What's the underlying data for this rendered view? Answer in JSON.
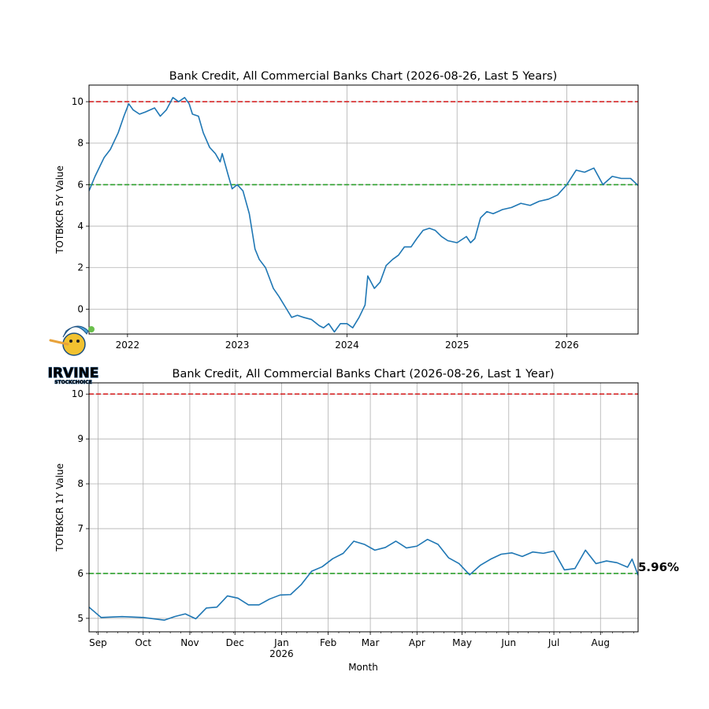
{
  "chart_data": [
    {
      "type": "line",
      "title": "Bank Credit, All Commercial Banks Chart (2026-08-26, Last 5 Years)",
      "xlabel": "",
      "ylabel": "TOTBKCR 5Y Value",
      "xlim": [
        "2021-08-26",
        "2026-08-26"
      ],
      "ylim": [
        -1.2,
        10.8
      ],
      "y_ticks": [
        "0",
        "2",
        "4",
        "6",
        "8",
        "10"
      ],
      "x_ticks": [
        "2022",
        "2023",
        "2024",
        "2025",
        "2026"
      ],
      "grid": true,
      "reference_lines": [
        {
          "value": 10,
          "color": "#d62728",
          "style": "dashed"
        },
        {
          "value": 6,
          "color": "#2ca02c",
          "style": "dashed"
        }
      ],
      "series": [
        {
          "color": "#1f77b4",
          "points": [
            [
              "2021-08-26",
              5.7
            ],
            [
              "2021-09-15",
              6.4
            ],
            [
              "2021-10-15",
              7.3
            ],
            [
              "2021-11-05",
              7.7
            ],
            [
              "2021-12-01",
              8.5
            ],
            [
              "2021-12-20",
              9.3
            ],
            [
              "2022-01-05",
              9.9
            ],
            [
              "2022-01-20",
              9.6
            ],
            [
              "2022-02-10",
              9.4
            ],
            [
              "2022-03-01",
              9.5
            ],
            [
              "2022-04-01",
              9.7
            ],
            [
              "2022-04-20",
              9.3
            ],
            [
              "2022-05-10",
              9.6
            ],
            [
              "2022-06-01",
              10.2
            ],
            [
              "2022-06-20",
              10.0
            ],
            [
              "2022-07-10",
              10.2
            ],
            [
              "2022-07-25",
              9.9
            ],
            [
              "2022-08-05",
              9.4
            ],
            [
              "2022-08-25",
              9.3
            ],
            [
              "2022-09-10",
              8.5
            ],
            [
              "2022-10-01",
              7.8
            ],
            [
              "2022-10-20",
              7.5
            ],
            [
              "2022-11-05",
              7.1
            ],
            [
              "2022-11-12",
              7.5
            ],
            [
              "2022-12-01",
              6.5
            ],
            [
              "2022-12-15",
              5.8
            ],
            [
              "2023-01-01",
              6.0
            ],
            [
              "2023-01-20",
              5.7
            ],
            [
              "2023-02-10",
              4.6
            ],
            [
              "2023-03-01",
              2.9
            ],
            [
              "2023-03-15",
              2.4
            ],
            [
              "2023-04-05",
              2.0
            ],
            [
              "2023-05-01",
              1.0
            ],
            [
              "2023-05-20",
              0.6
            ],
            [
              "2023-06-10",
              0.1
            ],
            [
              "2023-07-01",
              -0.4
            ],
            [
              "2023-07-20",
              -0.3
            ],
            [
              "2023-08-10",
              -0.4
            ],
            [
              "2023-09-05",
              -0.5
            ],
            [
              "2023-10-01",
              -0.8
            ],
            [
              "2023-10-15",
              -0.9
            ],
            [
              "2023-11-01",
              -0.7
            ],
            [
              "2023-11-20",
              -1.1
            ],
            [
              "2023-12-10",
              -0.7
            ],
            [
              "2024-01-01",
              -0.7
            ],
            [
              "2024-01-20",
              -0.9
            ],
            [
              "2024-02-10",
              -0.4
            ],
            [
              "2024-03-01",
              0.2
            ],
            [
              "2024-03-10",
              1.6
            ],
            [
              "2024-04-01",
              1.0
            ],
            [
              "2024-04-20",
              1.3
            ],
            [
              "2024-05-10",
              2.1
            ],
            [
              "2024-06-01",
              2.4
            ],
            [
              "2024-06-20",
              2.6
            ],
            [
              "2024-07-10",
              3.0
            ],
            [
              "2024-08-01",
              3.0
            ],
            [
              "2024-08-20",
              3.4
            ],
            [
              "2024-09-10",
              3.8
            ],
            [
              "2024-10-01",
              3.9
            ],
            [
              "2024-10-20",
              3.8
            ],
            [
              "2024-11-10",
              3.5
            ],
            [
              "2024-12-01",
              3.3
            ],
            [
              "2025-01-01",
              3.2
            ],
            [
              "2025-02-01",
              3.5
            ],
            [
              "2025-02-15",
              3.2
            ],
            [
              "2025-03-01",
              3.4
            ],
            [
              "2025-03-20",
              4.4
            ],
            [
              "2025-04-10",
              4.7
            ],
            [
              "2025-05-01",
              4.6
            ],
            [
              "2025-06-01",
              4.8
            ],
            [
              "2025-07-01",
              4.9
            ],
            [
              "2025-08-01",
              5.1
            ],
            [
              "2025-09-01",
              5.0
            ],
            [
              "2025-10-01",
              5.2
            ],
            [
              "2025-11-01",
              5.3
            ],
            [
              "2025-12-01",
              5.5
            ],
            [
              "2026-01-01",
              6.0
            ],
            [
              "2026-02-01",
              6.7
            ],
            [
              "2026-03-01",
              6.6
            ],
            [
              "2026-04-01",
              6.8
            ],
            [
              "2026-05-01",
              6.0
            ],
            [
              "2026-06-01",
              6.4
            ],
            [
              "2026-07-01",
              6.3
            ],
            [
              "2026-08-01",
              6.3
            ],
            [
              "2026-08-26",
              5.96
            ]
          ]
        }
      ]
    },
    {
      "type": "line",
      "title": "Bank Credit, All Commercial Banks Chart (2026-08-26, Last 1 Year)",
      "xlabel": "Month",
      "ylabel": "TOTBKCR 1Y Value",
      "xlim": [
        "2025-08-26",
        "2026-08-26"
      ],
      "ylim": [
        4.7,
        10.25
      ],
      "y_ticks": [
        "5",
        "6",
        "7",
        "8",
        "9",
        "10"
      ],
      "x_ticks": [
        {
          "date": "2025-09-01",
          "label": "Sep"
        },
        {
          "date": "2025-10-01",
          "label": "Oct"
        },
        {
          "date": "2025-11-01",
          "label": "Nov"
        },
        {
          "date": "2025-12-01",
          "label": "Dec"
        },
        {
          "date": "2026-01-01",
          "label": "Jan",
          "sublabel": "2026"
        },
        {
          "date": "2026-02-01",
          "label": "Feb"
        },
        {
          "date": "2026-03-01",
          "label": "Mar"
        },
        {
          "date": "2026-04-01",
          "label": "Apr"
        },
        {
          "date": "2026-05-01",
          "label": "May"
        },
        {
          "date": "2026-06-01",
          "label": "Jun"
        },
        {
          "date": "2026-07-01",
          "label": "Jul"
        },
        {
          "date": "2026-08-01",
          "label": "Aug"
        }
      ],
      "grid": true,
      "reference_lines": [
        {
          "value": 10,
          "color": "#d62728",
          "style": "dashed"
        },
        {
          "value": 6,
          "color": "#2ca02c",
          "style": "dashed"
        }
      ],
      "last_value_label": "5.96%",
      "series": [
        {
          "color": "#1f77b4",
          "points": [
            [
              "2025-08-26",
              5.25
            ],
            [
              "2025-09-03",
              5.02
            ],
            [
              "2025-09-17",
              5.04
            ],
            [
              "2025-10-01",
              5.02
            ],
            [
              "2025-10-15",
              4.96
            ],
            [
              "2025-10-22",
              5.04
            ],
            [
              "2025-10-29",
              5.1
            ],
            [
              "2025-11-05",
              4.99
            ],
            [
              "2025-11-12",
              5.23
            ],
            [
              "2025-11-19",
              5.25
            ],
            [
              "2025-11-26",
              5.5
            ],
            [
              "2025-12-03",
              5.45
            ],
            [
              "2025-12-10",
              5.3
            ],
            [
              "2025-12-17",
              5.3
            ],
            [
              "2025-12-24",
              5.43
            ],
            [
              "2025-12-31",
              5.52
            ],
            [
              "2026-01-07",
              5.53
            ],
            [
              "2026-01-14",
              5.75
            ],
            [
              "2026-01-21",
              6.05
            ],
            [
              "2026-01-28",
              6.15
            ],
            [
              "2026-02-04",
              6.33
            ],
            [
              "2026-02-11",
              6.45
            ],
            [
              "2026-02-18",
              6.72
            ],
            [
              "2026-02-25",
              6.65
            ],
            [
              "2026-03-04",
              6.52
            ],
            [
              "2026-03-11",
              6.58
            ],
            [
              "2026-03-18",
              6.72
            ],
            [
              "2026-03-25",
              6.57
            ],
            [
              "2026-04-01",
              6.61
            ],
            [
              "2026-04-08",
              6.76
            ],
            [
              "2026-04-15",
              6.65
            ],
            [
              "2026-04-22",
              6.35
            ],
            [
              "2026-04-29",
              6.22
            ],
            [
              "2026-05-06",
              5.97
            ],
            [
              "2026-05-13",
              6.18
            ],
            [
              "2026-05-20",
              6.32
            ],
            [
              "2026-05-27",
              6.43
            ],
            [
              "2026-06-03",
              6.46
            ],
            [
              "2026-06-10",
              6.38
            ],
            [
              "2026-06-17",
              6.48
            ],
            [
              "2026-06-24",
              6.45
            ],
            [
              "2026-07-01",
              6.5
            ],
            [
              "2026-07-08",
              6.08
            ],
            [
              "2026-07-15",
              6.11
            ],
            [
              "2026-07-22",
              6.52
            ],
            [
              "2026-07-29",
              6.22
            ],
            [
              "2026-08-05",
              6.28
            ],
            [
              "2026-08-12",
              6.24
            ],
            [
              "2026-08-19",
              6.14
            ],
            [
              "2026-08-22",
              6.32
            ],
            [
              "2026-08-26",
              5.96
            ]
          ]
        }
      ]
    }
  ],
  "logo": {
    "name": "irvine-stockchoice-logo",
    "text": "IRVINE",
    "subtext": "STOCKCHOICE",
    "colors": {
      "main": "#4aa0d8",
      "accent": "#f2c230",
      "outline": "#1b4f80"
    }
  }
}
